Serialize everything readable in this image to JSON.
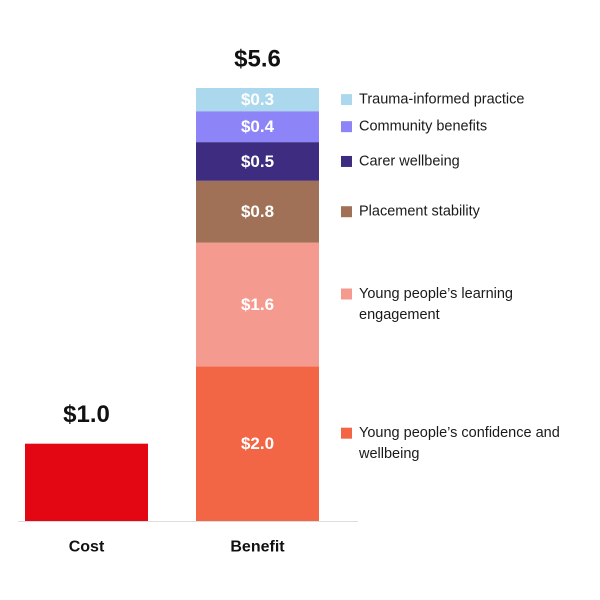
{
  "chart_data": {
    "type": "bar",
    "stacked": true,
    "categories": [
      "Cost",
      "Benefit"
    ],
    "totals": [
      "$1.0",
      "$5.6"
    ],
    "ylim": [
      0,
      5.6
    ],
    "grid": false,
    "legend_position": "right",
    "series": [
      {
        "category": "Cost",
        "label": "",
        "value": 1.0,
        "color": "#e30613",
        "legend": []
      },
      {
        "category": "Benefit",
        "label": "$2.0",
        "value": 2.0,
        "color": "#f26645",
        "legend": [
          "Young people’s confidence and",
          "wellbeing"
        ]
      },
      {
        "category": "Benefit",
        "label": "$1.6",
        "value": 1.6,
        "color": "#f59a8f",
        "legend": [
          "Young people’s learning",
          "engagement"
        ]
      },
      {
        "category": "Benefit",
        "label": "$0.8",
        "value": 0.8,
        "color": "#a07157",
        "legend": [
          "Placement stability"
        ]
      },
      {
        "category": "Benefit",
        "label": "$0.5",
        "value": 0.5,
        "color": "#3d2c7f",
        "legend": [
          "Carer wellbeing"
        ]
      },
      {
        "category": "Benefit",
        "label": "$0.4",
        "value": 0.4,
        "color": "#8c84f7",
        "legend": [
          "Community benefits"
        ]
      },
      {
        "category": "Benefit",
        "label": "$0.3",
        "value": 0.3,
        "color": "#acd8ed",
        "legend": [
          "Trauma-informed practice"
        ]
      }
    ]
  }
}
